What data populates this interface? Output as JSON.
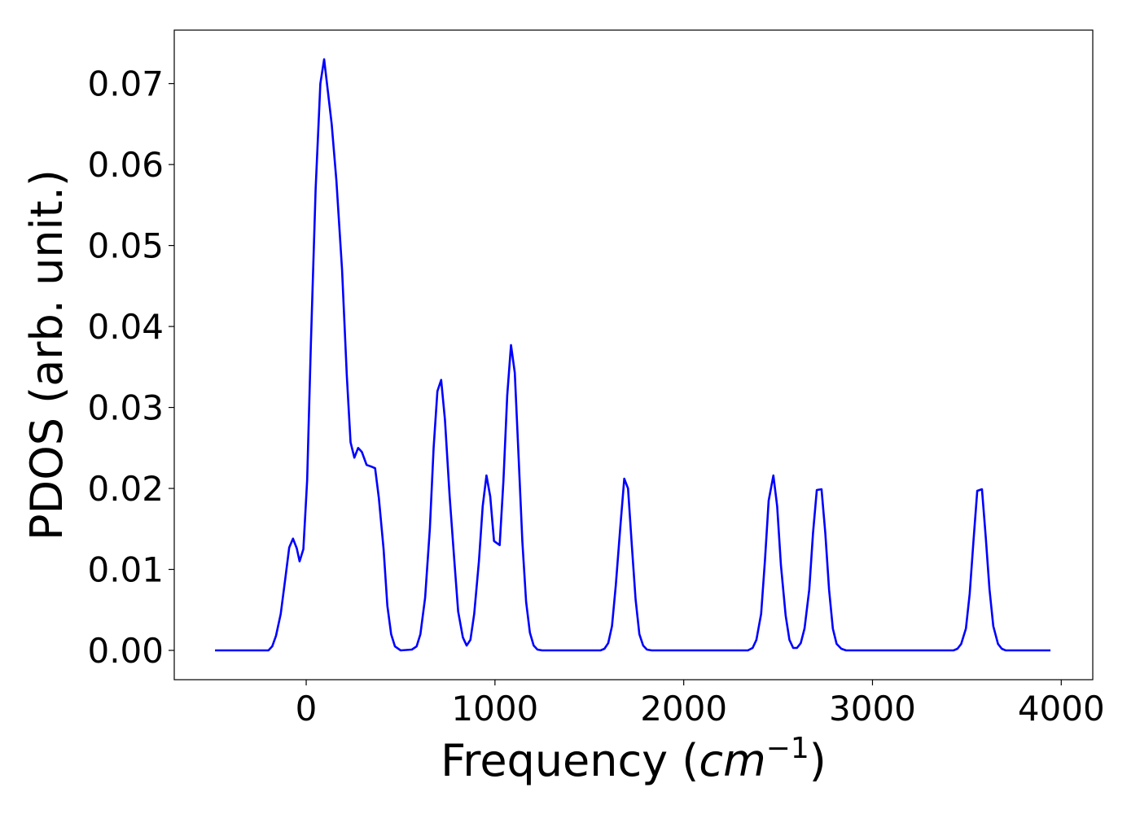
{
  "chart_data": {
    "type": "line",
    "xlabel": [
      "Frequency (",
      "cm",
      "−1",
      ")"
    ],
    "ylabel": "PDOS (arb. unit.)",
    "xlim": [
      -699,
      4167
    ],
    "ylim": [
      -0.00362,
      0.0766
    ],
    "xticks": [
      0,
      1000,
      2000,
      3000,
      4000
    ],
    "yticks": [
      {
        "value": 0,
        "label": "0.00"
      },
      {
        "value": 0.01,
        "label": "0.01"
      },
      {
        "value": 0.02,
        "label": "0.02"
      },
      {
        "value": 0.03,
        "label": "0.03"
      },
      {
        "value": 0.04,
        "label": "0.04"
      },
      {
        "value": 0.05,
        "label": "0.05"
      },
      {
        "value": 0.06,
        "label": "0.06"
      },
      {
        "value": 0.07,
        "label": "0.07"
      }
    ],
    "color": "#0000ff",
    "x": [
      -483,
      -200,
      -180,
      -160,
      -135,
      -110,
      -90,
      -70,
      -50,
      -35,
      -15,
      5,
      25,
      50,
      75,
      95,
      115,
      135,
      160,
      190,
      215,
      235,
      255,
      275,
      295,
      320,
      345,
      365,
      385,
      410,
      430,
      450,
      470,
      500,
      560,
      585,
      605,
      630,
      655,
      675,
      695,
      715,
      735,
      760,
      785,
      805,
      830,
      850,
      870,
      890,
      915,
      935,
      955,
      975,
      995,
      1025,
      1045,
      1065,
      1085,
      1105,
      1125,
      1145,
      1165,
      1185,
      1205,
      1225,
      1250,
      1560,
      1580,
      1600,
      1620,
      1640,
      1665,
      1685,
      1705,
      1725,
      1745,
      1765,
      1785,
      1805,
      1830,
      2340,
      2365,
      2385,
      2410,
      2430,
      2450,
      2475,
      2495,
      2515,
      2540,
      2560,
      2580,
      2600,
      2620,
      2640,
      2665,
      2685,
      2705,
      2730,
      2750,
      2770,
      2790,
      2810,
      2835,
      2860,
      3430,
      3450,
      3470,
      3495,
      3515,
      3535,
      3555,
      3580,
      3600,
      3620,
      3640,
      3665,
      3685,
      3705,
      3943
    ],
    "values": [
      0,
      0,
      0.0005,
      0.0018,
      0.0045,
      0.009,
      0.0127,
      0.0138,
      0.0126,
      0.011,
      0.0125,
      0.021,
      0.038,
      0.057,
      0.07,
      0.073,
      0.069,
      0.065,
      0.058,
      0.047,
      0.034,
      0.0257,
      0.0238,
      0.025,
      0.0245,
      0.0229,
      0.0227,
      0.0225,
      0.0188,
      0.0125,
      0.0055,
      0.002,
      0.0005,
      0,
      0.0001,
      0.0005,
      0.002,
      0.0065,
      0.015,
      0.025,
      0.032,
      0.0334,
      0.0285,
      0.019,
      0.011,
      0.0048,
      0.0016,
      0.0006,
      0.0013,
      0.0045,
      0.011,
      0.0178,
      0.0216,
      0.019,
      0.0135,
      0.013,
      0.021,
      0.0315,
      0.0377,
      0.0343,
      0.024,
      0.0135,
      0.006,
      0.0022,
      0.0006,
      0.0001,
      0,
      0,
      0.0002,
      0.0009,
      0.003,
      0.008,
      0.0155,
      0.0212,
      0.02,
      0.013,
      0.0063,
      0.002,
      0.0006,
      0.0001,
      0,
      0,
      0.0003,
      0.0013,
      0.0045,
      0.011,
      0.0185,
      0.0216,
      0.0178,
      0.0105,
      0.0043,
      0.0013,
      0.0003,
      0.0003,
      0.0009,
      0.0027,
      0.0075,
      0.0145,
      0.0198,
      0.0199,
      0.0145,
      0.0075,
      0.0027,
      0.0008,
      0.0002,
      0,
      0,
      0.0002,
      0.0008,
      0.0027,
      0.007,
      0.0135,
      0.0197,
      0.0199,
      0.014,
      0.0075,
      0.003,
      0.0008,
      0.0002,
      0,
      0
    ]
  }
}
